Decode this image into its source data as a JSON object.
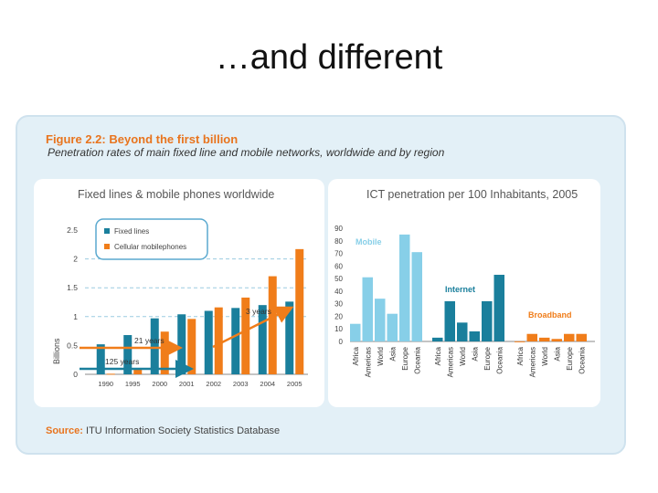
{
  "slide": {
    "title": "…and different"
  },
  "figure": {
    "title": "Figure 2.2: Beyond the first billion",
    "subtitle": "Penetration rates of main fixed line and mobile networks, worldwide and by region",
    "source_label": "Source:",
    "source_text": "ITU Information Society Statistics Database"
  },
  "colors": {
    "fixed": "#1a7f9c",
    "mobile": "#f07d1a",
    "internet": "#1a7f9c",
    "mobile_region": "#87cfe8",
    "broadband": "#f07d1a"
  },
  "chart_data": [
    {
      "type": "bar",
      "title": "Fixed lines & mobile phones worldwide",
      "ylabel": "Billions",
      "ylim": [
        0,
        2.5
      ],
      "yticks": [
        "0",
        "0.5",
        "1",
        "1.5",
        "2",
        "2.5"
      ],
      "categories": [
        "1990",
        "1995",
        "2000",
        "2001",
        "2002",
        "2003",
        "2004",
        "2005"
      ],
      "series": [
        {
          "name": "Fixed lines",
          "values": [
            0.52,
            0.68,
            0.97,
            1.04,
            1.1,
            1.15,
            1.2,
            1.26
          ]
        },
        {
          "name": "Cellular mobilephones",
          "values": [
            0.01,
            0.09,
            0.74,
            0.96,
            1.16,
            1.33,
            1.7,
            2.17
          ]
        }
      ],
      "annotations": [
        "3 years",
        "21 years",
        "125 years"
      ]
    },
    {
      "type": "bar",
      "title": "ICT penetration per 100 Inhabitants, 2005",
      "ylim": [
        0,
        90
      ],
      "yticks": [
        "0",
        "10",
        "20",
        "30",
        "40",
        "50",
        "60",
        "70",
        "80",
        "90"
      ],
      "groups": [
        {
          "name": "Mobile",
          "categories": [
            "Africa",
            "Americas",
            "World",
            "Asia",
            "Europe",
            "Oceania"
          ],
          "values": [
            14,
            51,
            34,
            22,
            85,
            71
          ]
        },
        {
          "name": "Internet",
          "categories": [
            "Africa",
            "Americas",
            "World",
            "Asia",
            "Europe",
            "Oceania"
          ],
          "values": [
            3,
            32,
            15,
            8,
            32,
            53
          ]
        },
        {
          "name": "Broadband",
          "categories": [
            "Africa",
            "Americas",
            "World",
            "Asia",
            "Europe",
            "Oceania"
          ],
          "values": [
            0.1,
            6,
            3,
            2,
            6,
            6
          ]
        }
      ]
    }
  ]
}
